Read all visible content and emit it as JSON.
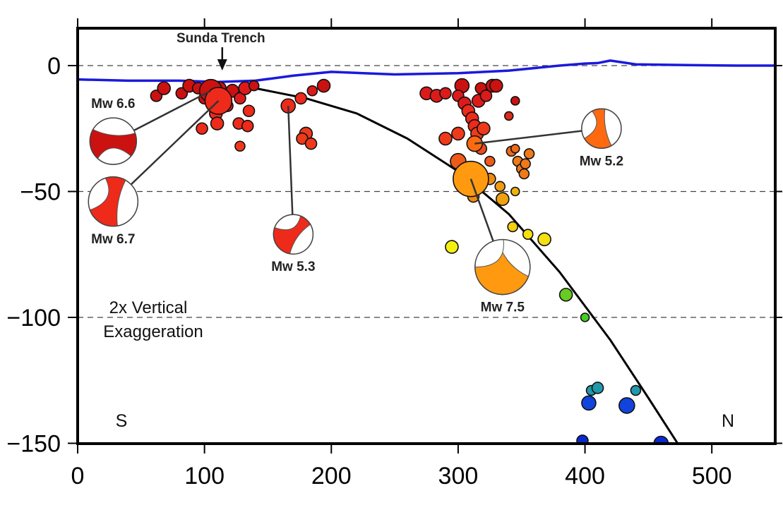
{
  "chart_data": {
    "type": "scatter",
    "title": "",
    "xlabel": "",
    "ylabel": "",
    "xlim": [
      0,
      550
    ],
    "ylim": [
      -150,
      15
    ],
    "x_ticks": [
      0,
      100,
      200,
      300,
      400,
      500
    ],
    "y_ticks": [
      0,
      -50,
      -100,
      -150
    ],
    "x_tick_labels": [
      "0",
      "100",
      "200",
      "300",
      "400",
      "500"
    ],
    "y_tick_labels": [
      "0",
      "−50",
      "−100",
      "−150"
    ],
    "dashed_reference_lines_y": [
      0,
      -50,
      -100
    ],
    "colors": {
      "topography": "#1a1adc",
      "slab": "#000000",
      "dashed": "#444444"
    },
    "topography": {
      "x": [
        0,
        40,
        80,
        110,
        140,
        170,
        200,
        250,
        300,
        340,
        380,
        400,
        410,
        420,
        440,
        480,
        520,
        550
      ],
      "y": [
        -5.5,
        -6,
        -6,
        -6.5,
        -6,
        -4,
        -2.5,
        -3.5,
        -3,
        -2,
        0,
        0.8,
        1,
        2,
        0.5,
        0.2,
        0,
        0
      ]
    },
    "slab_interface": {
      "x": [
        110,
        140,
        180,
        220,
        260,
        300,
        340,
        380,
        420,
        450,
        473
      ],
      "y": [
        -9,
        -9,
        -13,
        -19,
        -29,
        -42,
        -59,
        -82,
        -109,
        -132,
        -150
      ]
    },
    "earthquakes": [
      {
        "x": 62,
        "y": -12,
        "size": 8,
        "color": "#cc1111"
      },
      {
        "x": 68,
        "y": -9,
        "size": 9,
        "color": "#cc1111"
      },
      {
        "x": 82,
        "y": -11,
        "size": 8,
        "color": "#cc1111"
      },
      {
        "x": 88,
        "y": -8,
        "size": 9,
        "color": "#cc1111"
      },
      {
        "x": 95,
        "y": -9,
        "size": 8,
        "color": "#cc1111"
      },
      {
        "x": 100,
        "y": -13,
        "size": 8,
        "color": "#cc1111"
      },
      {
        "x": 112,
        "y": -9,
        "size": 9,
        "color": "#cc1111"
      },
      {
        "x": 118,
        "y": -16,
        "size": 8,
        "color": "#dd1a1a"
      },
      {
        "x": 122,
        "y": -10,
        "size": 9,
        "color": "#cc1111"
      },
      {
        "x": 128,
        "y": -13,
        "size": 8,
        "color": "#dd1a1a"
      },
      {
        "x": 132,
        "y": -9,
        "size": 9,
        "color": "#dd1a1a"
      },
      {
        "x": 135,
        "y": -18,
        "size": 8,
        "color": "#ee2a1a"
      },
      {
        "x": 139,
        "y": -8,
        "size": 7,
        "color": "#cc1111"
      },
      {
        "x": 109,
        "y": -19,
        "size": 9,
        "color": "#ee2a1a"
      },
      {
        "x": 110,
        "y": -23,
        "size": 9,
        "color": "#ee2a1a"
      },
      {
        "x": 98,
        "y": -25,
        "size": 8,
        "color": "#ee2a1a"
      },
      {
        "x": 127,
        "y": -23,
        "size": 8,
        "color": "#ee2a1a"
      },
      {
        "x": 134,
        "y": -24,
        "size": 8,
        "color": "#ee2a1a"
      },
      {
        "x": 128,
        "y": -32,
        "size": 7,
        "color": "#ee3a1a"
      },
      {
        "x": 176,
        "y": -13,
        "size": 8,
        "color": "#ee2a1a"
      },
      {
        "x": 185,
        "y": -10,
        "size": 7,
        "color": "#dd1a1a"
      },
      {
        "x": 194,
        "y": -8,
        "size": 9,
        "color": "#cc1111"
      },
      {
        "x": 180,
        "y": -27,
        "size": 9,
        "color": "#ee3a1a"
      },
      {
        "x": 177,
        "y": -29,
        "size": 8,
        "color": "#ee3a1a"
      },
      {
        "x": 184,
        "y": -31,
        "size": 8,
        "color": "#ee3a1a"
      },
      {
        "x": 275,
        "y": -11,
        "size": 9,
        "color": "#dd1a1a"
      },
      {
        "x": 283,
        "y": -12,
        "size": 9,
        "color": "#dd1a1a"
      },
      {
        "x": 290,
        "y": -11,
        "size": 8,
        "color": "#dd1a1a"
      },
      {
        "x": 303,
        "y": -8,
        "size": 10,
        "color": "#cc1111"
      },
      {
        "x": 300,
        "y": -12,
        "size": 8,
        "color": "#dd1a1a"
      },
      {
        "x": 305,
        "y": -15,
        "size": 9,
        "color": "#dd1a1a"
      },
      {
        "x": 308,
        "y": -18,
        "size": 9,
        "color": "#ee2a1a"
      },
      {
        "x": 311,
        "y": -21,
        "size": 9,
        "color": "#ee2a1a"
      },
      {
        "x": 313,
        "y": -24,
        "size": 9,
        "color": "#ee2a1a"
      },
      {
        "x": 316,
        "y": -14,
        "size": 9,
        "color": "#dd1a1a"
      },
      {
        "x": 318,
        "y": -9,
        "size": 8,
        "color": "#cc1111"
      },
      {
        "x": 322,
        "y": -12,
        "size": 8,
        "color": "#dd1a1a"
      },
      {
        "x": 315,
        "y": -27,
        "size": 9,
        "color": "#ee3a1a"
      },
      {
        "x": 320,
        "y": -25,
        "size": 9,
        "color": "#ee3a1a"
      },
      {
        "x": 300,
        "y": -27,
        "size": 9,
        "color": "#ee3a1a"
      },
      {
        "x": 290,
        "y": -29,
        "size": 9,
        "color": "#ee3a1a"
      },
      {
        "x": 327,
        "y": -8,
        "size": 9,
        "color": "#cc1111"
      },
      {
        "x": 330,
        "y": -8,
        "size": 9,
        "color": "#cc1111"
      },
      {
        "x": 345,
        "y": -14,
        "size": 6,
        "color": "#cc1111"
      },
      {
        "x": 340,
        "y": -20,
        "size": 6,
        "color": "#dd2a1a"
      },
      {
        "x": 300,
        "y": -38,
        "size": 11,
        "color": "#ee5a1a"
      },
      {
        "x": 318,
        "y": -33,
        "size": 8,
        "color": "#ee4a1a"
      },
      {
        "x": 325,
        "y": -38,
        "size": 7,
        "color": "#ee5a1a"
      },
      {
        "x": 342,
        "y": -34,
        "size": 7,
        "color": "#ee6a1a"
      },
      {
        "x": 345,
        "y": -33,
        "size": 6,
        "color": "#ee6a1a"
      },
      {
        "x": 347,
        "y": -38,
        "size": 7,
        "color": "#ee7a1a"
      },
      {
        "x": 350,
        "y": -41,
        "size": 7,
        "color": "#ee7a1a"
      },
      {
        "x": 352,
        "y": -43,
        "size": 7,
        "color": "#ee7a1a"
      },
      {
        "x": 353,
        "y": -39,
        "size": 7,
        "color": "#ee7a1a"
      },
      {
        "x": 356,
        "y": -35,
        "size": 7,
        "color": "#ee7a1a"
      },
      {
        "x": 312,
        "y": -52,
        "size": 8,
        "color": "#ee8a10"
      },
      {
        "x": 325,
        "y": -45,
        "size": 8,
        "color": "#ee8a10"
      },
      {
        "x": 333,
        "y": -48,
        "size": 7,
        "color": "#f09a10"
      },
      {
        "x": 335,
        "y": -53,
        "size": 9,
        "color": "#f0a010"
      },
      {
        "x": 345,
        "y": -50,
        "size": 6,
        "color": "#f0b010"
      },
      {
        "x": 343,
        "y": -64,
        "size": 7,
        "color": "#f5d010"
      },
      {
        "x": 355,
        "y": -67,
        "size": 7,
        "color": "#f5e010"
      },
      {
        "x": 368,
        "y": -69,
        "size": 9,
        "color": "#f5e010"
      },
      {
        "x": 295,
        "y": -72,
        "size": 9,
        "color": "#f5f010"
      },
      {
        "x": 385,
        "y": -91,
        "size": 9,
        "color": "#66cc22"
      },
      {
        "x": 400,
        "y": -100,
        "size": 6,
        "color": "#44cc22"
      },
      {
        "x": 405,
        "y": -129,
        "size": 7,
        "color": "#2299aa"
      },
      {
        "x": 410,
        "y": -128,
        "size": 8,
        "color": "#2299aa"
      },
      {
        "x": 440,
        "y": -129,
        "size": 7,
        "color": "#2299aa"
      },
      {
        "x": 403,
        "y": -134,
        "size": 10,
        "color": "#1144dd"
      },
      {
        "x": 433,
        "y": -135,
        "size": 11,
        "color": "#1144dd"
      },
      {
        "x": 398,
        "y": -149,
        "size": 8,
        "color": "#0a2ad0"
      },
      {
        "x": 460,
        "y": -150,
        "size": 10,
        "color": "#0a2ad0"
      },
      {
        "x": 105,
        "y": -10,
        "size": 16,
        "color": "#cc1111"
      },
      {
        "x": 111,
        "y": -14,
        "size": 19,
        "color": "#ee2a1a"
      },
      {
        "x": 166,
        "y": -16,
        "size": 10,
        "color": "#ee2a1a"
      },
      {
        "x": 313,
        "y": -31,
        "size": 11,
        "color": "#ff6a10"
      },
      {
        "x": 310,
        "y": -45,
        "size": 25,
        "color": "#ff9a10"
      }
    ],
    "focal_mechanisms": [
      {
        "label": "Mw 6.6",
        "label_side": "above",
        "x": 105,
        "y": -10,
        "bx": 28,
        "by": -30,
        "r": 33,
        "color": "#cc1111",
        "nodal": [
          [
            -150,
            0.55
          ],
          [
            -20,
            1.0
          ],
          [
            40,
            0.5
          ]
        ]
      },
      {
        "label": "Mw 6.7",
        "label_side": "below",
        "x": 111,
        "y": -14,
        "bx": 28,
        "by": -54,
        "r": 35,
        "color": "#ee2a1a",
        "nodal": [
          [
            -60,
            0.6
          ],
          [
            80,
            1.0
          ],
          [
            160,
            0.5
          ]
        ]
      },
      {
        "label": "Mw 5.3",
        "label_side": "below",
        "x": 166,
        "y": -16,
        "bx": 170,
        "by": -67,
        "r": 28,
        "color": "#ee2a1a",
        "nodal": [
          [
            -30,
            0.55
          ],
          [
            100,
            1.0
          ],
          [
            200,
            0.5
          ]
        ]
      },
      {
        "label": "Mw 5.2",
        "label_side": "below",
        "x": 313,
        "y": -31,
        "bx": 413,
        "by": -25,
        "r": 28,
        "color": "#ff6a10",
        "nodal": [
          [
            -80,
            0.6
          ],
          [
            60,
            1.0
          ],
          [
            150,
            0.5
          ]
        ]
      },
      {
        "label": "Mw 7.5",
        "label_side": "below",
        "x": 310,
        "y": -45,
        "bx": 335,
        "by": -80,
        "r": 39,
        "color": "#ff9a10",
        "nodal": [
          [
            -100,
            0.5
          ],
          [
            20,
            1.0
          ],
          [
            180,
            0.45
          ]
        ]
      }
    ],
    "annotations": {
      "trench_label": "Sunda Trench",
      "trench_x": 114,
      "exaggeration_line1": "2x Vertical",
      "exaggeration_line2": "Exaggeration",
      "left_direction": "S",
      "right_direction": "N"
    }
  }
}
